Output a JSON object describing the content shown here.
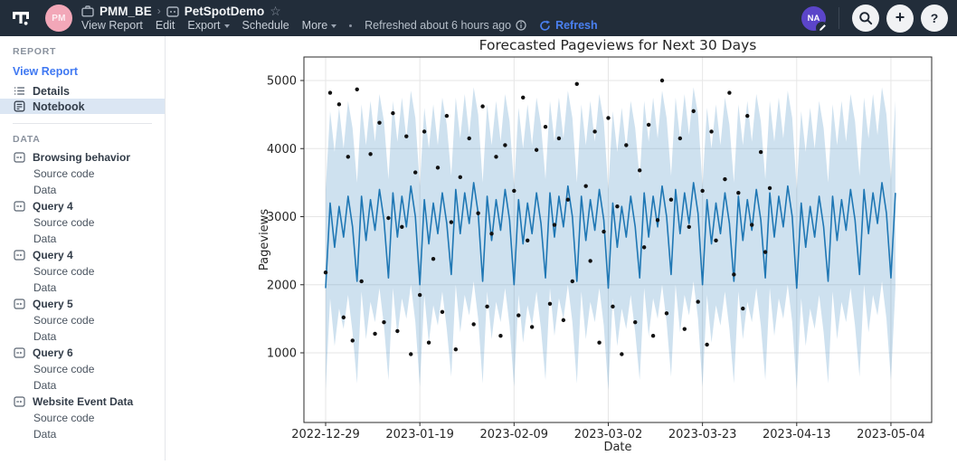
{
  "header": {
    "workspace": "PMM_BE",
    "report_title": "PetSpotDemo",
    "owner_avatar_initials": "PM",
    "user_avatar_initials": "NA",
    "menu": [
      "View Report",
      "Edit",
      "Export",
      "Schedule",
      "More"
    ],
    "refreshed_text": "Refreshed about 6 hours ago",
    "refresh_label": "Refresh"
  },
  "icons": {
    "star": "☆",
    "plus": "+",
    "help": "?"
  },
  "colors": {
    "header_bg": "#222d3a",
    "accent_blue": "#3f78f2",
    "selected_row_bg": "#dbe6f3",
    "owner_avatar_bg": "#f2a7b8",
    "user_avatar_bg": "#5b45c9"
  },
  "sidebar": {
    "report_section_label": "REPORT",
    "view_report_label": "View Report",
    "report_items": [
      {
        "label": "Details",
        "selected": false
      },
      {
        "label": "Notebook",
        "selected": true
      }
    ],
    "data_section_label": "DATA",
    "data_items": [
      {
        "label": "Browsing behavior",
        "children": [
          "Source code",
          "Data"
        ]
      },
      {
        "label": "Query 4",
        "children": [
          "Source code",
          "Data"
        ]
      },
      {
        "label": "Query 4",
        "children": [
          "Source code",
          "Data"
        ]
      },
      {
        "label": "Query 5",
        "children": [
          "Source code",
          "Data"
        ]
      },
      {
        "label": "Query 6",
        "children": [
          "Source code",
          "Data"
        ]
      },
      {
        "label": "Website Event Data",
        "children": [
          "Source code",
          "Data"
        ]
      }
    ]
  },
  "chart_data": {
    "type": "line",
    "title": "Forecasted Pageviews for Next 30 Days",
    "xlabel": "Date",
    "ylabel": "Pageviews",
    "start_date": "2022-12-29",
    "x_unit": "days_from_start",
    "x_tick_days": [
      0,
      21,
      42,
      63,
      84,
      105,
      126
    ],
    "x_tick_labels": [
      "2022-12-29",
      "2023-01-19",
      "2023-02-09",
      "2023-03-02",
      "2023-03-23",
      "2023-04-13",
      "2023-05-04"
    ],
    "y_ticks": [
      1000,
      2000,
      3000,
      4000,
      5000
    ],
    "ylim": [
      -60,
      5350
    ],
    "grid": true,
    "legend": "none",
    "line_color": "#1f77b4",
    "band_opacity": 0.22,
    "scatter_color": "#111111",
    "grid_color": "#e6e6e6",
    "axis_color": "#2b2b2b",
    "text_color": "#262626",
    "series": [
      {
        "name": "forecast_yhat",
        "values": [
          1950,
          3200,
          2550,
          3150,
          2700,
          3300,
          2850,
          2050,
          3300,
          2650,
          3250,
          2800,
          3400,
          2950,
          2100,
          3350,
          2700,
          3300,
          2850,
          3450,
          3000,
          2000,
          3250,
          2600,
          3200,
          2750,
          3350,
          2900,
          2150,
          3400,
          2750,
          3350,
          2900,
          3500,
          3050,
          2050,
          3300,
          2650,
          3250,
          2800,
          3400,
          2950,
          2000,
          3250,
          2600,
          3200,
          2750,
          3350,
          2900,
          2100,
          3350,
          2700,
          3300,
          2850,
          3450,
          3000,
          2050,
          3300,
          2650,
          3250,
          2800,
          3400,
          2950,
          1950,
          3200,
          2550,
          3150,
          2700,
          3300,
          2850,
          2100,
          3350,
          2700,
          3300,
          2850,
          3450,
          3000,
          2150,
          3400,
          2750,
          3350,
          2900,
          3500,
          3050,
          2000,
          3250,
          2600,
          3200,
          2750,
          3350,
          2900,
          2050,
          3300,
          2650,
          3250,
          2800,
          3400,
          2950,
          2100,
          3350,
          2700,
          3300,
          2850,
          3450,
          3000,
          1950,
          3200,
          2550,
          3150,
          2700,
          3300,
          2850,
          2050,
          3300,
          2650,
          3250,
          2800,
          3400,
          2950,
          2150,
          3400,
          2750,
          3350,
          2900,
          3500,
          3050,
          2100,
          3350
        ]
      },
      {
        "name": "upper_bound",
        "values": [
          3400,
          4550,
          3950,
          4600,
          4000,
          4700,
          4300,
          3500,
          4650,
          4050,
          4700,
          4100,
          4800,
          4400,
          3550,
          4700,
          4100,
          4750,
          4150,
          4850,
          4450,
          3450,
          4600,
          4000,
          4650,
          4050,
          4750,
          4350,
          3600,
          4750,
          4150,
          4800,
          4200,
          4900,
          4500,
          3500,
          4650,
          4050,
          4700,
          4100,
          4800,
          4400,
          3450,
          4600,
          4000,
          4650,
          4050,
          4750,
          4350,
          3550,
          4700,
          4100,
          4750,
          4150,
          4850,
          4450,
          3500,
          4650,
          4050,
          4700,
          4100,
          4800,
          4400,
          3400,
          4550,
          3950,
          4600,
          4000,
          4700,
          4300,
          3550,
          4700,
          4100,
          4750,
          4150,
          4850,
          4450,
          3600,
          4750,
          4150,
          4800,
          4200,
          4900,
          4500,
          3450,
          4600,
          4000,
          4650,
          4050,
          4750,
          4350,
          3500,
          4650,
          4050,
          4700,
          4100,
          4800,
          4400,
          3550,
          4700,
          4100,
          4750,
          4150,
          4850,
          4450,
          3400,
          4550,
          3950,
          4600,
          4000,
          4700,
          4300,
          3500,
          4650,
          4050,
          4700,
          4100,
          4800,
          4400,
          3600,
          4750,
          4150,
          4800,
          4200,
          4900,
          4500,
          3550,
          4700
        ]
      },
      {
        "name": "lower_bound",
        "values": [
          450,
          1800,
          1100,
          1650,
          1350,
          1850,
          1300,
          550,
          1900,
          1200,
          1750,
          1450,
          1950,
          1400,
          600,
          1950,
          1250,
          1800,
          1500,
          2000,
          1450,
          500,
          1850,
          1150,
          1700,
          1400,
          1900,
          1350,
          650,
          2000,
          1300,
          1850,
          1550,
          2050,
          1500,
          550,
          1900,
          1200,
          1750,
          1450,
          1950,
          1400,
          500,
          1850,
          1150,
          1700,
          1400,
          1900,
          1350,
          600,
          1950,
          1250,
          1800,
          1500,
          2000,
          1450,
          550,
          1900,
          1200,
          1750,
          1450,
          1950,
          1400,
          450,
          1800,
          1100,
          1650,
          1350,
          1850,
          1300,
          600,
          1950,
          1250,
          1800,
          1500,
          2000,
          1450,
          650,
          2000,
          1300,
          1850,
          1550,
          2050,
          1500,
          500,
          1850,
          1150,
          1700,
          1400,
          1900,
          1350,
          550,
          1900,
          1200,
          1750,
          1450,
          1950,
          1400,
          600,
          1950,
          1250,
          1800,
          1500,
          2000,
          1450,
          450,
          1800,
          1100,
          1650,
          1350,
          1850,
          1300,
          550,
          1900,
          1200,
          1750,
          1450,
          1950,
          1400,
          650,
          2000,
          1300,
          1850,
          1550,
          2050,
          1500,
          600,
          1950
        ]
      }
    ],
    "scatter": {
      "name": "actual_pageviews",
      "points": [
        [
          0,
          2180
        ],
        [
          1,
          4820
        ],
        [
          3,
          4650
        ],
        [
          4,
          1520
        ],
        [
          5,
          3880
        ],
        [
          6,
          1180
        ],
        [
          7,
          4870
        ],
        [
          8,
          2050
        ],
        [
          10,
          3920
        ],
        [
          11,
          1280
        ],
        [
          12,
          4380
        ],
        [
          13,
          1450
        ],
        [
          14,
          2980
        ],
        [
          15,
          4520
        ],
        [
          16,
          1320
        ],
        [
          17,
          2850
        ],
        [
          18,
          4180
        ],
        [
          19,
          980
        ],
        [
          20,
          3650
        ],
        [
          21,
          1850
        ],
        [
          22,
          4250
        ],
        [
          23,
          1150
        ],
        [
          24,
          2380
        ],
        [
          25,
          3720
        ],
        [
          26,
          1600
        ],
        [
          27,
          4480
        ],
        [
          28,
          2920
        ],
        [
          29,
          1050
        ],
        [
          30,
          3580
        ],
        [
          32,
          4150
        ],
        [
          33,
          1420
        ],
        [
          34,
          3050
        ],
        [
          35,
          4620
        ],
        [
          36,
          1680
        ],
        [
          37,
          2750
        ],
        [
          38,
          3880
        ],
        [
          39,
          1250
        ],
        [
          40,
          4050
        ],
        [
          42,
          3380
        ],
        [
          43,
          1550
        ],
        [
          44,
          4750
        ],
        [
          45,
          2650
        ],
        [
          46,
          1380
        ],
        [
          47,
          3980
        ],
        [
          49,
          4320
        ],
        [
          50,
          1720
        ],
        [
          51,
          2880
        ],
        [
          52,
          4150
        ],
        [
          53,
          1480
        ],
        [
          54,
          3250
        ],
        [
          55,
          2050
        ],
        [
          56,
          4950
        ],
        [
          58,
          3450
        ],
        [
          59,
          2350
        ],
        [
          60,
          4250
        ],
        [
          61,
          1150
        ],
        [
          62,
          2780
        ],
        [
          63,
          4450
        ],
        [
          64,
          1680
        ],
        [
          65,
          3150
        ],
        [
          66,
          980
        ],
        [
          67,
          4050
        ],
        [
          69,
          1450
        ],
        [
          70,
          3680
        ],
        [
          71,
          2550
        ],
        [
          72,
          4350
        ],
        [
          73,
          1250
        ],
        [
          74,
          2950
        ],
        [
          75,
          5000
        ],
        [
          76,
          1580
        ],
        [
          77,
          3250
        ],
        [
          79,
          4150
        ],
        [
          80,
          1350
        ],
        [
          81,
          2850
        ],
        [
          82,
          4550
        ],
        [
          83,
          1750
        ],
        [
          84,
          3380
        ],
        [
          85,
          1120
        ],
        [
          86,
          4250
        ],
        [
          87,
          2650
        ],
        [
          89,
          3550
        ],
        [
          90,
          4820
        ],
        [
          91,
          2150
        ],
        [
          92,
          3350
        ],
        [
          93,
          1650
        ],
        [
          94,
          4480
        ],
        [
          95,
          2880
        ],
        [
          97,
          3950
        ],
        [
          98,
          2480
        ],
        [
          99,
          3420
        ]
      ]
    }
  }
}
